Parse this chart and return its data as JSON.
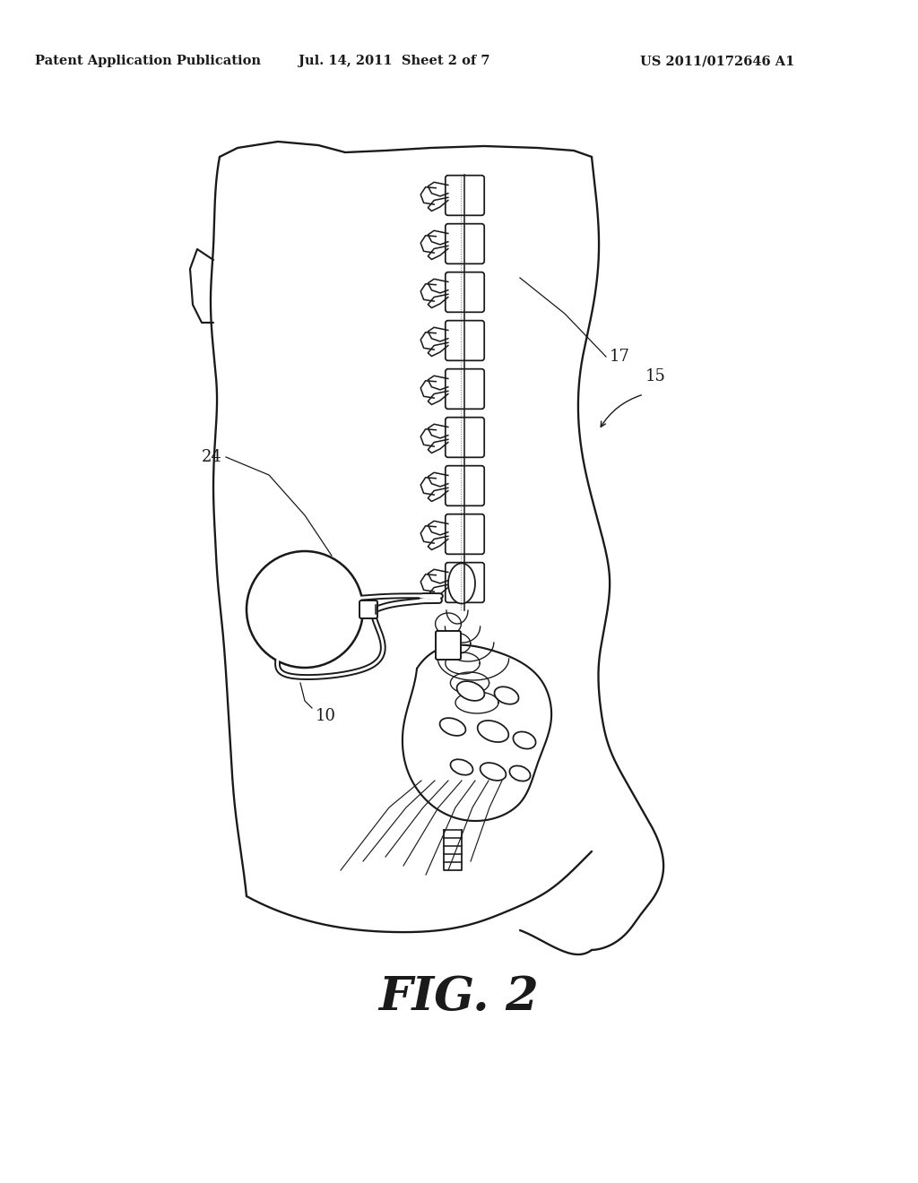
{
  "header_left": "Patent Application Publication",
  "header_mid": "Jul. 14, 2011  Sheet 2 of 7",
  "header_right": "US 2011/0172646 A1",
  "fig_label": "FIG. 2",
  "label_10": "10",
  "label_24": "24",
  "label_17": "17",
  "label_15": "15",
  "bg_color": "#ffffff",
  "line_color": "#1a1a1a",
  "line_width": 1.4,
  "fig_label_fontsize": 38,
  "header_fontsize": 10.5,
  "annotation_fontsize": 13
}
